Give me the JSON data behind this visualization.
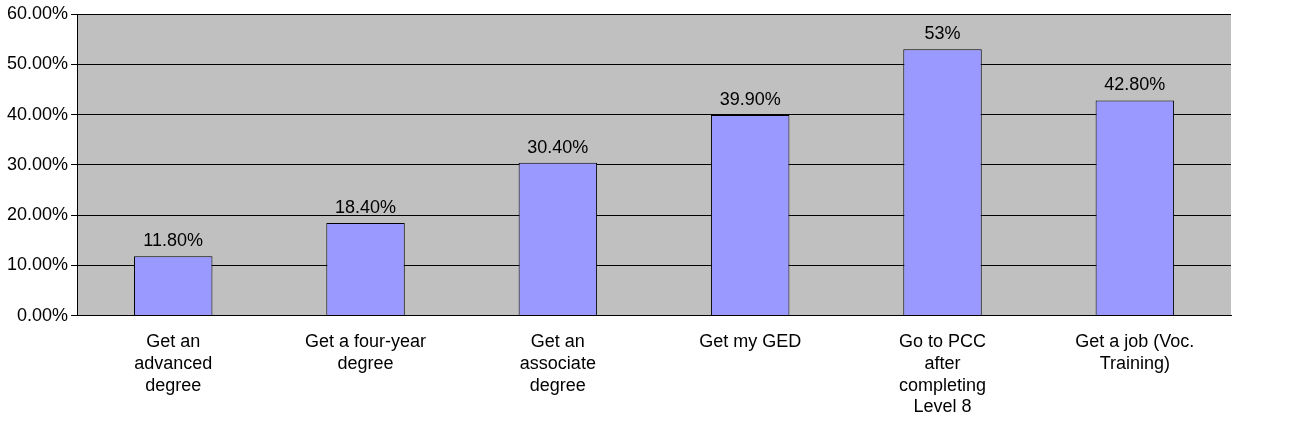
{
  "chart_data": {
    "type": "bar",
    "categories": [
      "Get an advanced degree",
      "Get a four-year degree",
      "Get an associate degree",
      "Get my GED",
      "Go to PCC after completing Level 8",
      "Get a job (Voc. Training)"
    ],
    "values": [
      11.8,
      18.4,
      30.4,
      39.9,
      53,
      42.8
    ],
    "value_labels": [
      "11.80%",
      "18.40%",
      "30.40%",
      "39.90%",
      "53%",
      "42.80%"
    ],
    "color": "#9999ff",
    "ylim": [
      0,
      60
    ],
    "yticks": [
      {
        "value": 0,
        "label": "0.00%"
      },
      {
        "value": 10,
        "label": "10.00%"
      },
      {
        "value": 20,
        "label": "20.00%"
      },
      {
        "value": 30,
        "label": "30.00%"
      },
      {
        "value": 40,
        "label": "40.00%"
      },
      {
        "value": 50,
        "label": "50.00%"
      },
      {
        "value": 60,
        "label": "60.00%"
      }
    ],
    "grid": "y",
    "legend": false
  }
}
